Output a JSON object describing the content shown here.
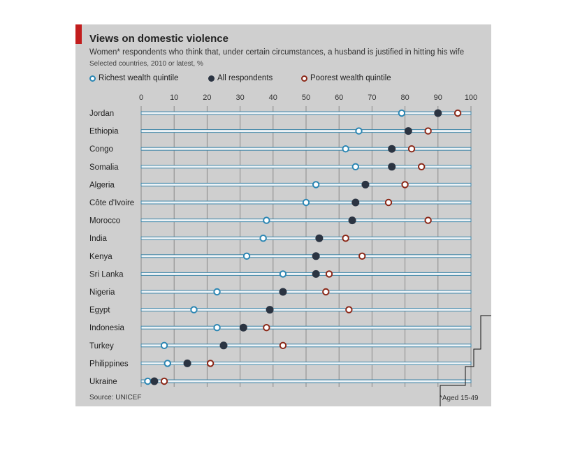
{
  "title": "Views on domestic violence",
  "subtitle": "Women* respondents who think that, under certain circumstances, a husband is justified in hitting his wife",
  "subsubtitle": "Selected countries, 2010 or latest, %",
  "source": "Source: UNICEF",
  "footnote": "*Aged 15-49",
  "colors": {
    "panel": "#cfcfcf",
    "richest": "#2b86b3",
    "all": "#2b3442",
    "poorest": "#8b2818",
    "accent": "#c21d1d"
  },
  "chart_data": {
    "type": "scatter",
    "title": "Views on domestic violence",
    "subtitle": "Women* respondents who think that, under certain circumstances, a husband is justified in hitting his wife",
    "xlim": [
      0,
      100
    ],
    "x_ticks": [
      0,
      10,
      20,
      30,
      40,
      50,
      60,
      70,
      80,
      90,
      100
    ],
    "grid": true,
    "legend_position": "top",
    "categories": [
      "Jordan",
      "Ethiopia",
      "Congo",
      "Somalia",
      "Algeria",
      "Côte d'Ivoire",
      "Morocco",
      "India",
      "Kenya",
      "Sri Lanka",
      "Nigeria",
      "Egypt",
      "Indonesia",
      "Turkey",
      "Philippines",
      "Ukraine"
    ],
    "series": [
      {
        "name": "Richest wealth quintile",
        "marker": "open",
        "color": "#2b86b3",
        "values": [
          79,
          66,
          62,
          65,
          53,
          50,
          38,
          37,
          32,
          43,
          23,
          16,
          23,
          7,
          8,
          2
        ]
      },
      {
        "name": "All respondents",
        "marker": "filled",
        "color": "#2b3442",
        "values": [
          90,
          81,
          76,
          76,
          68,
          65,
          64,
          54,
          53,
          53,
          43,
          39,
          31,
          25,
          14,
          4
        ]
      },
      {
        "name": "Poorest wealth quintile",
        "marker": "open",
        "color": "#8b2818",
        "values": [
          96,
          87,
          82,
          85,
          80,
          75,
          87,
          62,
          67,
          57,
          56,
          63,
          38,
          43,
          21,
          7
        ]
      }
    ]
  }
}
